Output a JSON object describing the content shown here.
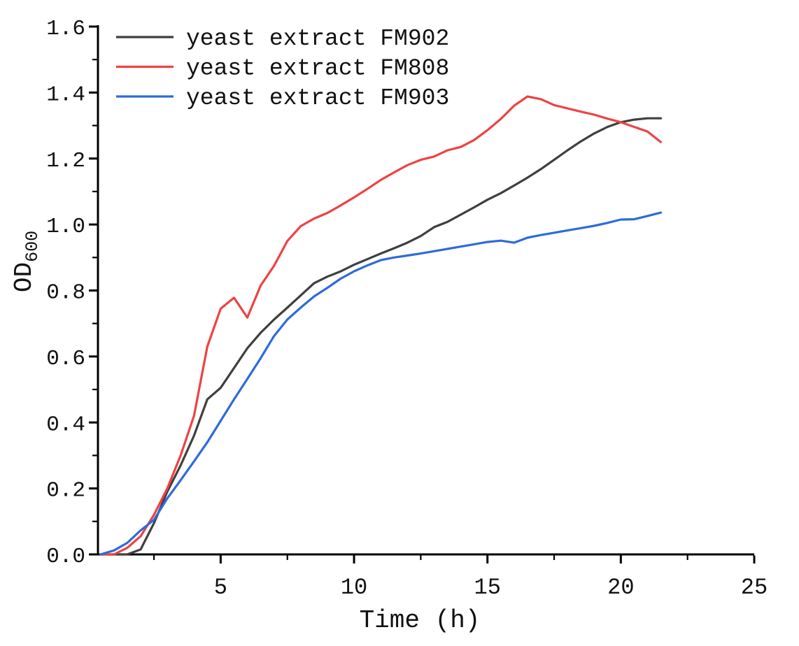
{
  "figure": {
    "ylabel_main": "OD",
    "ylabel_sub": "600"
  },
  "chart_data": {
    "type": "line",
    "title": "",
    "xlabel": "Time (h)",
    "ylabel": "OD600",
    "xlim": [
      0.4,
      25
    ],
    "ylim": [
      0,
      1.6
    ],
    "grid": false,
    "legend_position": "top-left",
    "x_major_ticks": [
      5,
      10,
      15,
      20,
      25
    ],
    "x_tick_labels": [
      "5",
      "10",
      "15",
      "20",
      "25"
    ],
    "x_minor_ticks": [
      2.5,
      7.5,
      12.5,
      17.5,
      22.5
    ],
    "y_major_ticks": [
      0.0,
      0.2,
      0.4,
      0.6,
      0.8,
      1.0,
      1.2,
      1.4,
      1.6
    ],
    "y_tick_labels": [
      "0.0",
      "0.2",
      "0.4",
      "0.6",
      "0.8",
      "1.0",
      "1.2",
      "1.4",
      "1.6"
    ],
    "y_minor_ticks": [
      0.1,
      0.3,
      0.5,
      0.7,
      0.9,
      1.1,
      1.3,
      1.5
    ],
    "axis_color": "#000000",
    "x": [
      0.5,
      1,
      1.5,
      2,
      2.5,
      3,
      3.5,
      4,
      4.5,
      5,
      5.5,
      6,
      6.5,
      7,
      7.5,
      8,
      8.5,
      9,
      9.5,
      10,
      10.5,
      11,
      11.5,
      12,
      12.5,
      13,
      13.5,
      14,
      14.5,
      15,
      15.5,
      16,
      16.5,
      17,
      17.5,
      18,
      18.5,
      19,
      19.5,
      20,
      20.5,
      21,
      21.5
    ],
    "series": [
      {
        "name": "yeast extract FM902",
        "color": "#3f3f3f",
        "values": [
          0,
          0,
          0,
          0.015,
          0.095,
          0.19,
          0.27,
          0.36,
          0.47,
          0.505,
          0.565,
          0.625,
          0.672,
          0.712,
          0.748,
          0.785,
          0.822,
          0.842,
          0.858,
          0.878,
          0.895,
          0.912,
          0.928,
          0.945,
          0.965,
          0.992,
          1.008,
          1.03,
          1.052,
          1.075,
          1.095,
          1.118,
          1.142,
          1.168,
          1.196,
          1.225,
          1.252,
          1.276,
          1.296,
          1.31,
          1.318,
          1.322,
          1.322
        ]
      },
      {
        "name": "yeast extract FM808",
        "color": "#ee4244",
        "values": [
          0,
          0,
          0.02,
          0.055,
          0.12,
          0.2,
          0.3,
          0.42,
          0.63,
          0.745,
          0.778,
          0.718,
          0.815,
          0.875,
          0.95,
          0.995,
          1.018,
          1.035,
          1.058,
          1.082,
          1.108,
          1.135,
          1.158,
          1.18,
          1.196,
          1.206,
          1.225,
          1.235,
          1.256,
          1.286,
          1.32,
          1.36,
          1.388,
          1.38,
          1.362,
          1.352,
          1.342,
          1.333,
          1.321,
          1.31,
          1.296,
          1.282,
          1.25
        ]
      },
      {
        "name": "yeast extract FM903",
        "color": "#2d6bd9",
        "values": [
          0,
          0.012,
          0.035,
          0.073,
          0.105,
          0.17,
          0.225,
          0.282,
          0.34,
          0.405,
          0.47,
          0.532,
          0.595,
          0.662,
          0.712,
          0.748,
          0.782,
          0.808,
          0.836,
          0.858,
          0.876,
          0.892,
          0.9,
          0.906,
          0.912,
          0.919,
          0.926,
          0.933,
          0.94,
          0.947,
          0.951,
          0.945,
          0.96,
          0.968,
          0.975,
          0.982,
          0.989,
          0.996,
          1.005,
          1.015,
          1.016,
          1.026,
          1.036
        ]
      }
    ]
  }
}
